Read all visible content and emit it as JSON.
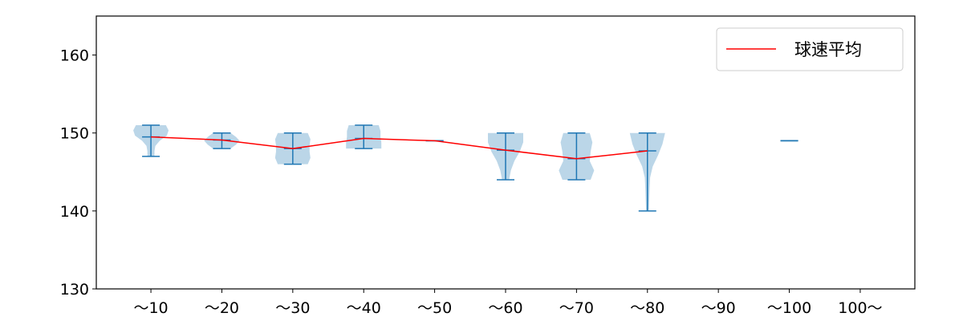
{
  "chart_data": {
    "type": "violin",
    "title": "",
    "xlabel": "",
    "ylabel": "",
    "categories": [
      "～10",
      "～20",
      "～30",
      "～40",
      "～50",
      "～60",
      "～70",
      "～80",
      "～90",
      "～100",
      "100～"
    ],
    "ylim": [
      130,
      165
    ],
    "yticks": [
      130,
      140,
      150,
      160
    ],
    "grid": false,
    "violins": [
      {
        "min": 147,
        "max": 151,
        "mean": 149.5,
        "density": [
          0.2,
          0.2,
          0.25,
          0.5,
          0.9,
          1.0,
          0.85
        ]
      },
      {
        "min": 148,
        "max": 150,
        "mean": 149.1,
        "density": [
          0.5,
          0.8,
          1.0,
          0.8,
          0.5
        ]
      },
      {
        "min": 146,
        "max": 150,
        "mean": 148.0,
        "density": [
          0.85,
          1.0,
          0.95,
          0.95,
          1.0,
          0.85
        ]
      },
      {
        "min": 148,
        "max": 151,
        "mean": 149.3,
        "density": [
          1.0,
          1.0,
          0.95,
          0.95,
          0.85
        ]
      },
      {
        "min": 149,
        "max": 149,
        "mean": 149.0,
        "density": []
      },
      {
        "min": 144,
        "max": 150,
        "mean": 147.8,
        "density": [
          0.2,
          0.3,
          0.5,
          0.8,
          1.0,
          1.0
        ]
      },
      {
        "min": 144,
        "max": 150,
        "mean": 146.7,
        "density": [
          0.8,
          1.0,
          0.75,
          0.8,
          0.9,
          0.75
        ]
      },
      {
        "min": 140,
        "max": 150,
        "mean": 147.7,
        "density": [
          0.08,
          0.1,
          0.12,
          0.15,
          0.3,
          0.6,
          0.85,
          1.0
        ]
      },
      null,
      {
        "min": 149,
        "max": 149,
        "mean": 149.0,
        "density": []
      },
      null
    ],
    "mean_line": {
      "name": "球速平均",
      "color": "#ff0000",
      "values": [
        149.5,
        149.1,
        148.0,
        149.3,
        149.0,
        147.8,
        146.7,
        147.7
      ]
    },
    "violin_color": "#1f77b4",
    "legend_position": "top-right"
  }
}
